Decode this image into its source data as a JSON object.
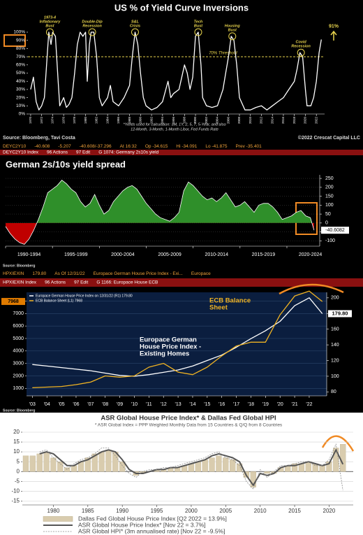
{
  "chart_data": [
    {
      "type": "line",
      "title": "US % of Yield Curve Inversions",
      "x": [
        1970,
        1970.5,
        1971,
        1971.5,
        1972,
        1972.5,
        1973,
        1973.3,
        1973.7,
        1974,
        1974.5,
        1975,
        1975.3,
        1976,
        1976.5,
        1977,
        1977.5,
        1978,
        1978.5,
        1979,
        1979.5,
        1980,
        1980.3,
        1980.7,
        1981,
        1981.5,
        1982,
        1982.5,
        1983,
        1984,
        1984.5,
        1985,
        1986,
        1987,
        1988,
        1988.5,
        1989,
        1989.5,
        1990,
        1990.5,
        1991,
        1992,
        1993,
        1994,
        1995,
        1995.5,
        1996,
        1997,
        1997.5,
        1998,
        1998.5,
        1999,
        1999.5,
        2000,
        2000.5,
        2001,
        2001.3,
        2002,
        2003,
        2004,
        2005,
        2005.5,
        2006,
        2006.5,
        2007,
        2007.5,
        2008,
        2009,
        2010,
        2011,
        2012,
        2013,
        2014,
        2015,
        2016,
        2017,
        2018,
        2018.5,
        2019,
        2019.5,
        2020,
        2020.3,
        2021,
        2021.5,
        2022,
        2022.5,
        2022.9
      ],
      "series": [
        {
          "color": "#ffffff",
          "values": [
            30,
            45,
            15,
            5,
            10,
            20,
            70,
            100,
            85,
            100,
            95,
            40,
            10,
            20,
            8,
            12,
            20,
            50,
            85,
            100,
            95,
            100,
            40,
            85,
            100,
            100,
            70,
            20,
            10,
            20,
            35,
            15,
            10,
            20,
            35,
            70,
            100,
            85,
            50,
            20,
            10,
            5,
            8,
            15,
            40,
            20,
            25,
            30,
            45,
            60,
            50,
            30,
            45,
            95,
            100,
            60,
            20,
            10,
            8,
            10,
            30,
            50,
            70,
            95,
            90,
            60,
            20,
            5,
            5,
            8,
            10,
            5,
            10,
            15,
            20,
            30,
            40,
            55,
            75,
            70,
            30,
            10,
            10,
            20,
            40,
            75,
            91
          ],
          "value_labels": [
            null,
            null,
            null,
            null,
            null,
            null,
            null,
            null,
            null,
            null,
            null,
            null,
            null,
            null,
            null,
            null,
            null,
            null,
            null,
            null,
            null,
            null,
            null,
            null,
            null,
            null,
            null,
            null,
            null,
            null,
            null,
            null,
            null,
            null,
            null,
            null,
            null,
            null,
            null,
            null,
            null,
            null,
            null,
            null,
            null,
            null,
            null,
            null,
            null,
            null,
            null,
            null,
            null,
            null,
            null,
            null,
            null,
            null,
            null,
            null,
            null,
            null,
            null,
            null,
            null,
            null,
            null,
            null,
            null,
            null,
            null,
            null,
            null,
            null,
            null,
            null,
            null,
            null,
            null,
            null,
            null,
            null,
            null,
            null,
            null,
            null,
            "91%"
          ]
        }
      ],
      "xlim": [
        1969.5,
        2023.5
      ],
      "xticks": [
        1970,
        1972,
        1974,
        1976,
        1978,
        1980,
        1982,
        1984,
        1986,
        1988,
        1990,
        1992,
        1994,
        1996,
        1998,
        2000,
        2002,
        2004,
        2006,
        2008,
        2010,
        2012,
        2014,
        2016,
        2018,
        2020,
        2022
      ],
      "ylim": [
        0,
        100
      ],
      "yticks": [
        {
          "value": 0,
          "label": "0%"
        },
        {
          "value": 10,
          "label": "10%"
        },
        {
          "value": 20,
          "label": "20%"
        },
        {
          "value": 30,
          "label": "30%"
        },
        {
          "value": 40,
          "label": "40%"
        },
        {
          "value": 50,
          "label": "50%"
        },
        {
          "value": 60,
          "label": "60%"
        },
        {
          "value": 70,
          "label": "70%"
        },
        {
          "value": 80,
          "label": "80%"
        },
        {
          "value": 90,
          "label": "90%"
        },
        {
          "value": 100,
          "label": "100%"
        }
      ],
      "grid": false,
      "threshold": {
        "value": 70,
        "label": "70% Threshold",
        "color": "#e8d44d"
      },
      "events": [
        {
          "lines": [
            "1973-4",
            "Inflationary",
            "Bust"
          ],
          "x": 1973.5,
          "y": 100
        },
        {
          "lines": [
            "Double-Dip",
            "Recession"
          ],
          "x": 1981.2,
          "y": 100
        },
        {
          "lines": [
            "S&L",
            "Crisis"
          ],
          "x": 1989,
          "y": 100
        },
        {
          "lines": [
            "Tech",
            "Bust"
          ],
          "x": 2000.5,
          "y": 100
        },
        {
          "lines": [
            "Housing",
            "Bust"
          ],
          "x": 2006.7,
          "y": 95
        },
        {
          "lines": [
            "Covid",
            "Recession"
          ],
          "x": 2019.2,
          "y": 75
        }
      ],
      "notes": [
        "*Yields used for calculation: 3M, 1Y, 2, 5, 7, 5-Year, and also",
        "12-Month, 3-Month, 1-Month Libor, Fed Funds Rate"
      ],
      "source": "Source: Bloomberg, Tavi Costa",
      "copyright": "©2022 Crescat Capital LLC"
    },
    {
      "type": "area",
      "title": "German 2s/10s yield spread",
      "x": [
        1990,
        1990.5,
        1991,
        1991.5,
        1992,
        1992.5,
        1993,
        1993.5,
        1994,
        1994.5,
        1995,
        1995.5,
        1996,
        1996.5,
        1997,
        1997.5,
        1998,
        1998.5,
        1999,
        1999.5,
        2000,
        2000.5,
        2001,
        2001.5,
        2002,
        2002.5,
        2003,
        2003.5,
        2004,
        2004.5,
        2005,
        2005.5,
        2006,
        2006.5,
        2007,
        2007.5,
        2008,
        2008.5,
        2009,
        2009.5,
        2010,
        2010.5,
        2011,
        2011.5,
        2012,
        2012.5,
        2013,
        2013.5,
        2014,
        2014.5,
        2015,
        2015.5,
        2016,
        2016.5,
        2017,
        2017.5,
        2018,
        2018.5,
        2019,
        2019.5,
        2020,
        2020.5,
        2021,
        2021.5,
        2022,
        2022.5,
        2022.9
      ],
      "series": [
        {
          "color": "#2f8f2a",
          "negative_color": "#c00000",
          "values": [
            -20,
            -60,
            -90,
            -110,
            -120,
            -90,
            -40,
            20,
            90,
            170,
            190,
            210,
            240,
            220,
            190,
            170,
            120,
            90,
            110,
            160,
            100,
            50,
            70,
            120,
            150,
            180,
            200,
            210,
            190,
            150,
            110,
            80,
            50,
            30,
            20,
            10,
            30,
            60,
            180,
            230,
            210,
            180,
            150,
            130,
            140,
            120,
            140,
            170,
            130,
            90,
            100,
            120,
            90,
            60,
            100,
            110,
            110,
            90,
            60,
            20,
            30,
            40,
            60,
            70,
            40,
            30,
            -40.6082
          ]
        }
      ],
      "xlim": [
        1990,
        2023.5
      ],
      "xticks": [
        {
          "value": 1990,
          "label": "1990-1994"
        },
        {
          "value": 1995,
          "label": "1995-1999"
        },
        {
          "value": 2000,
          "label": "2000-2004"
        },
        {
          "value": 2005,
          "label": "2005-2009"
        },
        {
          "value": 2010,
          "label": "2010-2014"
        },
        {
          "value": 2015,
          "label": "2015-2019"
        },
        {
          "value": 2020,
          "label": "2020-2024"
        }
      ],
      "ylim": [
        -130,
        270
      ],
      "yticks": [
        -100,
        -50,
        0,
        50,
        100,
        150,
        200,
        250
      ],
      "y_axis_side": "right",
      "grid": true,
      "source": "Source: Bloomberg"
    },
    {
      "type": "line",
      "x": [
        2003,
        2004,
        2005,
        2006,
        2007,
        2008,
        2009,
        2010,
        2011,
        2012,
        2013,
        2014,
        2015,
        2016,
        2017,
        2018,
        2019,
        2020,
        2021,
        2022,
        2022.9
      ],
      "series": [
        {
          "name": "Europace German House Price Index on 12/31/22 (R1) 179.80",
          "color": "#ffffff",
          "axis": "y2",
          "values": [
            115,
            113,
            111,
            109,
            107,
            104,
            101,
            100,
            102,
            105,
            108,
            113,
            120,
            127,
            137,
            148,
            158,
            170,
            190,
            200,
            179.8
          ],
          "value_labels": [
            null,
            null,
            null,
            null,
            null,
            null,
            null,
            null,
            null,
            null,
            null,
            null,
            null,
            null,
            null,
            null,
            null,
            null,
            null,
            null,
            "179.80"
          ]
        },
        {
          "name": "ECB Balance Sheet (L1) 7968",
          "color": "#f0b323",
          "values": [
            1050,
            1100,
            1150,
            1300,
            1500,
            2000,
            1900,
            2000,
            2700,
            3000,
            2300,
            2100,
            2700,
            3600,
            4400,
            4700,
            4700,
            6900,
            8400,
            8800,
            7968
          ]
        }
      ],
      "annotations": [
        {
          "lines": [
            "ECB Balance",
            "Sheet"
          ],
          "color": "#f0b323"
        },
        {
          "lines": [
            "Europace German",
            "House Price Index -",
            "Existing Homes"
          ],
          "color": "#ffffff"
        }
      ],
      "xlim": [
        2002.6,
        2023.2
      ],
      "xticks": [
        {
          "value": 2003,
          "label": "'03"
        },
        {
          "value": 2004,
          "label": "'04"
        },
        {
          "value": 2005,
          "label": "'05"
        },
        {
          "value": 2006,
          "label": "'06"
        },
        {
          "value": 2007,
          "label": "'07"
        },
        {
          "value": 2008,
          "label": "'08"
        },
        {
          "value": 2009,
          "label": "'09"
        },
        {
          "value": 2010,
          "label": "'10"
        },
        {
          "value": 2011,
          "label": "'11"
        },
        {
          "value": 2012,
          "label": "'12"
        },
        {
          "value": 2013,
          "label": "'13"
        },
        {
          "value": 2014,
          "label": "'14"
        },
        {
          "value": 2015,
          "label": "'15"
        },
        {
          "value": 2016,
          "label": "'16"
        },
        {
          "value": 2017,
          "label": "'17"
        },
        {
          "value": 2018,
          "label": "'18"
        },
        {
          "value": 2019,
          "label": "'19"
        },
        {
          "value": 2020,
          "label": "'20"
        },
        {
          "value": 2021,
          "label": "'21"
        },
        {
          "value": 2022,
          "label": "'22"
        }
      ],
      "ylim": [
        400,
        8700
      ],
      "yticks": [
        1000,
        2000,
        3000,
        4000,
        5000,
        6000,
        7000,
        8000
      ],
      "y2lim": [
        75,
        207
      ],
      "y2ticks": [
        80,
        100,
        120,
        140,
        160,
        180,
        200
      ],
      "grid": true,
      "source": "Source: Bloomberg"
    },
    {
      "type": "bar",
      "title": "ASR Global House Price Index* & Dallas Fed Global HPI",
      "subtitle": "* ASR Global Index = PPP Weighted Monthly Data from 15 Countries & Q/Q from 8 Countries",
      "x": [
        1976,
        1977,
        1978,
        1979,
        1980,
        1981,
        1982,
        1983,
        1984,
        1985,
        1986,
        1987,
        1988,
        1989,
        1990,
        1991,
        1992,
        1993,
        1994,
        1995,
        1996,
        1997,
        1998,
        1999,
        2000,
        2001,
        2002,
        2003,
        2004,
        2005,
        2006,
        2007,
        2008,
        2009,
        2010,
        2011,
        2012,
        2013,
        2014,
        2015,
        2016,
        2017,
        2018,
        2019,
        2020,
        2021,
        2022
      ],
      "series": [
        {
          "name": "Dallas Fed Global House Price Index [Q2 2022 = 13.9%]",
          "type": "bar",
          "color": "#d9ccae",
          "values": [
            8,
            8,
            9,
            10,
            7,
            5,
            2,
            3,
            5,
            7,
            9,
            10,
            11,
            10,
            5,
            0,
            -2,
            -1,
            0,
            1,
            1,
            2,
            2,
            3,
            4,
            5,
            6,
            7,
            8,
            7,
            6,
            4,
            -3,
            -8,
            0,
            -1,
            -1,
            2,
            3,
            4,
            4,
            5,
            4,
            3,
            5,
            12,
            13.9
          ]
        },
        {
          "name": "ASR Global House Price Index* [Nov 22 = 3.7%]",
          "type": "line",
          "color": "#555555",
          "values": [
            null,
            null,
            9,
            10,
            9,
            6,
            3,
            3,
            5,
            6,
            8,
            10,
            11,
            10,
            6,
            1,
            -1,
            -1,
            0,
            1,
            1,
            2,
            2,
            3,
            4,
            5,
            6,
            8,
            9,
            8,
            7,
            5,
            -2,
            -7,
            -1,
            -2,
            -1,
            2,
            3,
            3,
            4,
            5,
            4,
            3,
            4,
            11,
            3.7
          ]
        },
        {
          "name": "ASR Global HPI* (3m annualised rate) [Nov 22 = -9.5%]",
          "type": "line",
          "color": "#8a8a8a",
          "dashed": true,
          "values": [
            null,
            null,
            10,
            11,
            7,
            4,
            1,
            4,
            6,
            7,
            9,
            12,
            12,
            8,
            3,
            -1,
            -3,
            0,
            1,
            1,
            2,
            2,
            3,
            4,
            5,
            6,
            7,
            9,
            10,
            7,
            6,
            3,
            -5,
            -9,
            1,
            -3,
            0,
            3,
            3,
            4,
            5,
            5,
            3,
            3,
            6,
            14,
            -9.5
          ]
        }
      ],
      "xlim": [
        1975.5,
        2023.5
      ],
      "xticks": [
        1980,
        1985,
        1990,
        1995,
        2000,
        2005,
        2010,
        2015,
        2020
      ],
      "ylim": [
        -17,
        20
      ],
      "yticks": [
        -15,
        -10,
        -5,
        0,
        5,
        10,
        15,
        20
      ],
      "grid": true
    }
  ],
  "tickers": [
    {
      "row1": [
        "DEYC2Y10",
        "-40.608",
        "-5.207",
        "-40.608/-37.296",
        "At 16:32",
        "Op -34.615",
        "Hi -34.091",
        "Lo -41.875",
        "Prev -35.401"
      ],
      "row2": [
        "DEYC2Y10 Index",
        "96 Actions",
        "97 Edit",
        "G 1074: Germany 2s10s yield"
      ]
    },
    {
      "row1": [
        "HPXIEXIN",
        "179.80",
        "As Of 12/31/22",
        "Europace German House Price Index - Exi...",
        "Europace"
      ],
      "row2": [
        "HPXIEXIN Index",
        "96 Actions",
        "97 Edit",
        "G 1166: Europace House ECB"
      ]
    }
  ]
}
